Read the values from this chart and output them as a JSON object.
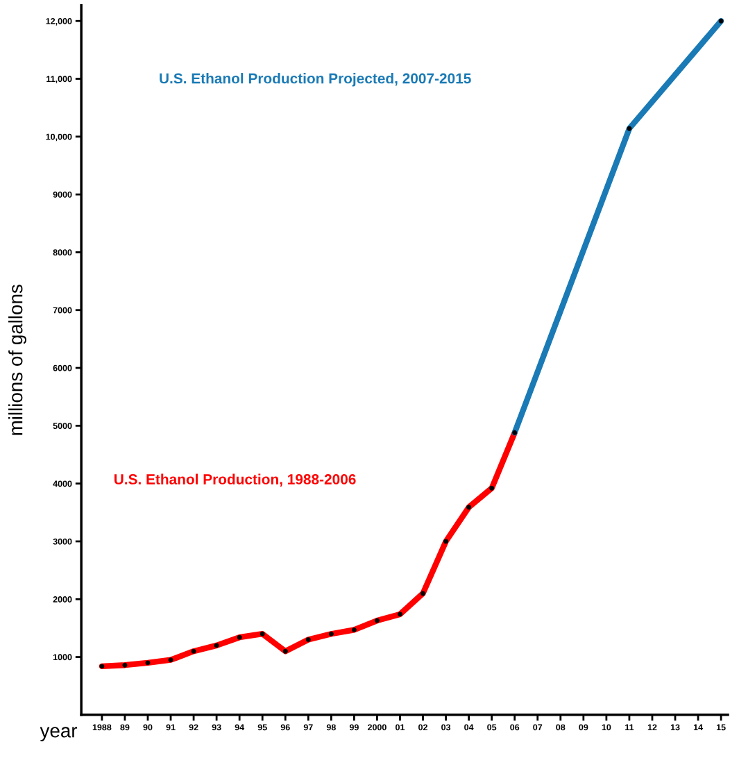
{
  "chart_data": {
    "type": "line",
    "xlabel": "year",
    "ylabel": "millions of gallons",
    "series": [
      {
        "name": "U.S. Ethanol Production, 1988-2006",
        "color": "#ff0000",
        "x": [
          1988,
          1989,
          1990,
          1991,
          1992,
          1993,
          1994,
          1995,
          1996,
          1997,
          1998,
          1999,
          2000,
          2001,
          2002,
          2003,
          2004,
          2005,
          2006
        ],
        "values": [
          840,
          860,
          900,
          950,
          1100,
          1200,
          1340,
          1400,
          1100,
          1300,
          1400,
          1470,
          1630,
          1740,
          2100,
          3000,
          3590,
          3920,
          4880
        ]
      },
      {
        "name": "U.S. Ethanol Production Projected, 2007-2015",
        "color": "#1a7ab5",
        "x": [
          2006,
          2011,
          2015
        ],
        "values": [
          4880,
          10140,
          12000
        ]
      }
    ],
    "xlim": [
      1987.1,
      2015.3
    ],
    "ylim": [
      0,
      12270
    ],
    "xticks": [
      {
        "value": 1988,
        "label": "1988"
      },
      {
        "value": 1989,
        "label": "89"
      },
      {
        "value": 1990,
        "label": "90"
      },
      {
        "value": 1991,
        "label": "91"
      },
      {
        "value": 1992,
        "label": "92"
      },
      {
        "value": 1993,
        "label": "93"
      },
      {
        "value": 1994,
        "label": "94"
      },
      {
        "value": 1995,
        "label": "95"
      },
      {
        "value": 1996,
        "label": "96"
      },
      {
        "value": 1997,
        "label": "97"
      },
      {
        "value": 1998,
        "label": "98"
      },
      {
        "value": 1999,
        "label": "99"
      },
      {
        "value": 2000,
        "label": "2000"
      },
      {
        "value": 2001,
        "label": "01"
      },
      {
        "value": 2002,
        "label": "02"
      },
      {
        "value": 2003,
        "label": "03"
      },
      {
        "value": 2004,
        "label": "04"
      },
      {
        "value": 2005,
        "label": "05"
      },
      {
        "value": 2006,
        "label": "06"
      },
      {
        "value": 2007,
        "label": "07"
      },
      {
        "value": 2008,
        "label": "08"
      },
      {
        "value": 2009,
        "label": "09"
      },
      {
        "value": 2010,
        "label": "10"
      },
      {
        "value": 2011,
        "label": "11"
      },
      {
        "value": 2012,
        "label": "12"
      },
      {
        "value": 2013,
        "label": "13"
      },
      {
        "value": 2014,
        "label": "14"
      },
      {
        "value": 2015,
        "label": "15"
      }
    ],
    "yticks": [
      1000,
      2000,
      3000,
      4000,
      5000,
      6000,
      7000,
      8000,
      9000,
      {
        "value": 10000,
        "label": "10,000"
      },
      {
        "value": 11000,
        "label": "11,000"
      },
      {
        "value": 12000,
        "label": "12,000"
      }
    ],
    "grid": false,
    "legend": false,
    "marker": "circle",
    "line_style": "solid"
  }
}
